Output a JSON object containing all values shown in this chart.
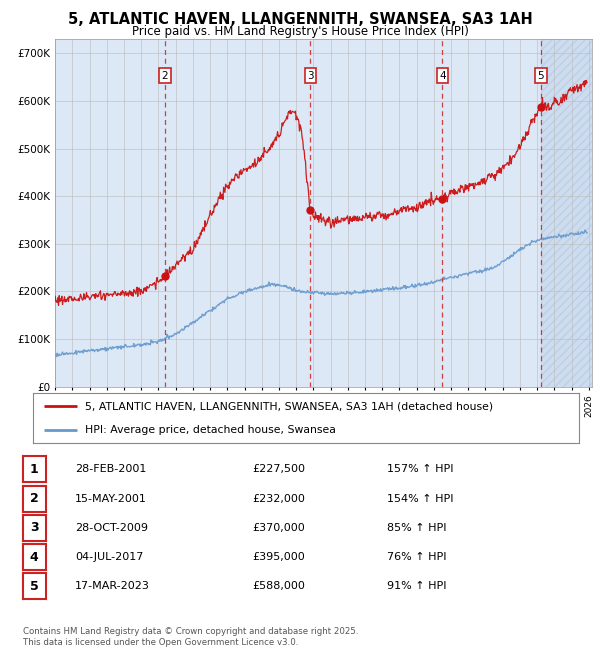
{
  "title": "5, ATLANTIC HAVEN, LLANGENNITH, SWANSEA, SA3 1AH",
  "subtitle": "Price paid vs. HM Land Registry's House Price Index (HPI)",
  "title_fontsize": 10.5,
  "subtitle_fontsize": 8.5,
  "plot_bg_color": "#dce8f5",
  "grid_color": "#bbbbbb",
  "ylabel_values": [
    "£0",
    "£100K",
    "£200K",
    "£300K",
    "£400K",
    "£500K",
    "£600K",
    "£700K"
  ],
  "ytick_values": [
    0,
    100000,
    200000,
    300000,
    400000,
    500000,
    600000,
    700000
  ],
  "ylim": [
    0,
    730000
  ],
  "xlim_start": 1995.0,
  "xlim_end": 2026.2,
  "sale_dates": [
    2001.16,
    2001.38,
    2009.83,
    2017.5,
    2023.21
  ],
  "sale_prices": [
    227500,
    232000,
    370000,
    395000,
    588000
  ],
  "dashed_line_dates": [
    2001.38,
    2009.83,
    2017.5,
    2023.21
  ],
  "dashed_label_nums": [
    "2",
    "3",
    "4",
    "5"
  ],
  "red_line_color": "#cc1111",
  "blue_line_color": "#6699cc",
  "sale_dot_color": "#cc1111",
  "dashed_color": "#cc2222",
  "hatch_start": 2023.21,
  "footer": "Contains HM Land Registry data © Crown copyright and database right 2025.\nThis data is licensed under the Open Government Licence v3.0.",
  "legend_red": "5, ATLANTIC HAVEN, LLANGENNITH, SWANSEA, SA3 1AH (detached house)",
  "legend_blue": "HPI: Average price, detached house, Swansea",
  "table_rows": [
    {
      "num": "1",
      "date": "28-FEB-2001",
      "price": "£227,500",
      "pct": "157% ↑ HPI"
    },
    {
      "num": "2",
      "date": "15-MAY-2001",
      "price": "£232,000",
      "pct": "154% ↑ HPI"
    },
    {
      "num": "3",
      "date": "28-OCT-2009",
      "price": "£370,000",
      "pct": "85% ↑ HPI"
    },
    {
      "num": "4",
      "date": "04-JUL-2017",
      "price": "£395,000",
      "pct": "76% ↑ HPI"
    },
    {
      "num": "5",
      "date": "17-MAR-2023",
      "price": "£588,000",
      "pct": "91% ↑ HPI"
    }
  ]
}
